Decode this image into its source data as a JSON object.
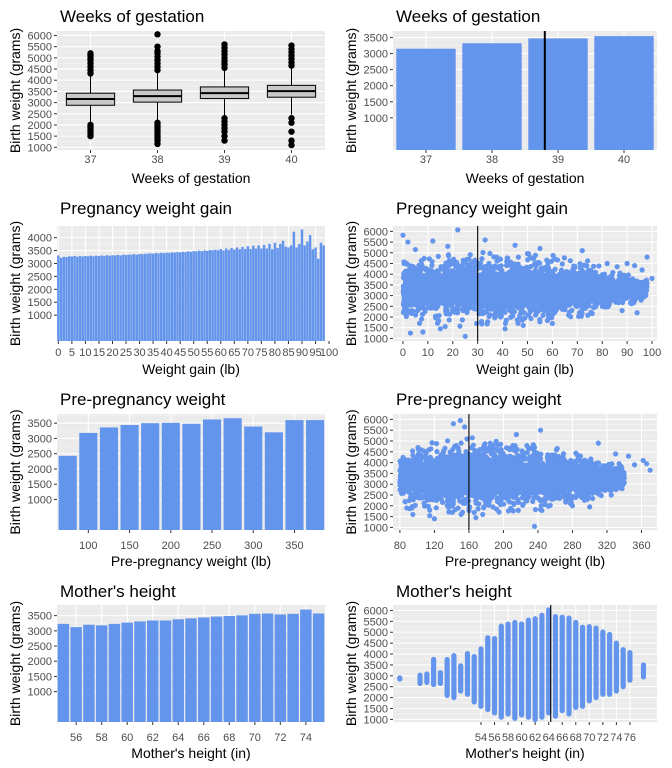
{
  "colors": {
    "panel_bg": "#ebebeb",
    "grid_major": "#ffffff",
    "bar": "#6495ed",
    "point": "#6495ed",
    "box_fill": "#c8c8c8",
    "outline": "#000000",
    "vline": "#000000"
  },
  "chart_data": [
    {
      "type": "box",
      "title": "Weeks of gestation",
      "xlabel": "Weeks of gestation",
      "ylabel": "Birth weight (grams)",
      "categories": [
        "37",
        "38",
        "39",
        "40"
      ],
      "ylim": [
        880,
        6200
      ],
      "yticks": [
        "1000",
        "1500",
        "2000",
        "2500",
        "3000",
        "3500",
        "4000",
        "4500",
        "5000",
        "5500",
        "6000"
      ],
      "boxes": [
        {
          "q1": 2880,
          "median": 3160,
          "q3": 3420,
          "wlo": 2100,
          "whi": 4180,
          "outliers": [
            1500,
            1600,
            1700,
            1800,
            1900,
            2000,
            4300,
            4450,
            4600,
            4750,
            4900,
            5000,
            5100,
            5200
          ]
        },
        {
          "q1": 3020,
          "median": 3290,
          "q3": 3560,
          "wlo": 2200,
          "whi": 4330,
          "outliers": [
            1150,
            1300,
            1400,
            1500,
            1600,
            1700,
            1800,
            1900,
            2000,
            2100,
            4450,
            4600,
            4750,
            4900,
            5050,
            5200,
            5300,
            5500,
            6050
          ]
        },
        {
          "q1": 3180,
          "median": 3420,
          "q3": 3700,
          "wlo": 2420,
          "whi": 4460,
          "outliers": [
            1300,
            1500,
            1700,
            1850,
            2000,
            2150,
            2300,
            4550,
            4700,
            4850,
            5000,
            5150,
            5300,
            5450,
            5600
          ]
        },
        {
          "q1": 3240,
          "median": 3510,
          "q3": 3770,
          "wlo": 2460,
          "whi": 4560,
          "outliers": [
            1100,
            1300,
            1700,
            2100,
            2300,
            4650,
            4800,
            4950,
            5100,
            5250,
            5400,
            5550
          ]
        }
      ]
    },
    {
      "type": "bar",
      "title": "Weeks of gestation",
      "xlabel": "Weeks of gestation",
      "ylabel": "Birth weight (grams)",
      "categories": [
        "37",
        "38",
        "39",
        "40"
      ],
      "values": [
        3150,
        3320,
        3470,
        3540
      ],
      "ylim": [
        0,
        3700
      ],
      "yticks": [
        "1000",
        "1500",
        "2000",
        "2500",
        "3000",
        "3500"
      ],
      "vline_x": 38.8
    },
    {
      "type": "bar",
      "title": "Pregnancy weight gain",
      "xlabel": "Weight gain (lb)",
      "ylabel": "Birth weight (grams)",
      "x": [
        0,
        1,
        2,
        3,
        4,
        5,
        6,
        7,
        8,
        9,
        10,
        11,
        12,
        13,
        14,
        15,
        16,
        17,
        18,
        19,
        20,
        21,
        22,
        23,
        24,
        25,
        26,
        27,
        28,
        29,
        30,
        31,
        32,
        33,
        34,
        35,
        36,
        37,
        38,
        39,
        40,
        41,
        42,
        43,
        44,
        45,
        46,
        47,
        48,
        49,
        50,
        51,
        52,
        53,
        54,
        55,
        56,
        57,
        58,
        59,
        60,
        61,
        62,
        63,
        64,
        65,
        66,
        67,
        68,
        69,
        70,
        71,
        72,
        73,
        74,
        75,
        76,
        77,
        78,
        79,
        80,
        81,
        82,
        83,
        84,
        85,
        86,
        87,
        88,
        89,
        90,
        91,
        92,
        93,
        94,
        95,
        96,
        97,
        98
      ],
      "values": [
        3310,
        3220,
        3260,
        3250,
        3280,
        3270,
        3290,
        3260,
        3290,
        3270,
        3290,
        3280,
        3300,
        3280,
        3300,
        3290,
        3310,
        3290,
        3320,
        3300,
        3320,
        3310,
        3330,
        3310,
        3340,
        3330,
        3340,
        3340,
        3360,
        3340,
        3370,
        3360,
        3370,
        3380,
        3390,
        3380,
        3400,
        3390,
        3410,
        3400,
        3420,
        3410,
        3430,
        3420,
        3440,
        3430,
        3450,
        3440,
        3470,
        3450,
        3480,
        3470,
        3500,
        3480,
        3510,
        3490,
        3520,
        3510,
        3530,
        3510,
        3560,
        3500,
        3580,
        3520,
        3600,
        3540,
        3620,
        3550,
        3640,
        3560,
        3670,
        3560,
        3690,
        3580,
        3700,
        3580,
        3720,
        3580,
        3760,
        3550,
        3800,
        3600,
        3760,
        3880,
        3650,
        3620,
        3700,
        4230,
        3620,
        3750,
        4320,
        3700,
        3850,
        4100,
        3550,
        3620,
        3180,
        3800,
        3700
      ],
      "ylim": [
        0,
        4450
      ],
      "yticks": [
        "1000",
        "1500",
        "2000",
        "2500",
        "3000",
        "3500",
        "4000"
      ],
      "xticks": [
        "0",
        "5",
        "10",
        "15",
        "20",
        "25",
        "30",
        "35",
        "40",
        "45",
        "50",
        "55",
        "60",
        "65",
        "70",
        "75",
        "80",
        "85",
        "90",
        "95",
        "100"
      ],
      "xtick_values": [
        0,
        5,
        10,
        15,
        20,
        25,
        30,
        35,
        40,
        45,
        50,
        55,
        60,
        65,
        70,
        75,
        80,
        85,
        90,
        95,
        100
      ],
      "xlim": [
        -0.5,
        98.5
      ]
    },
    {
      "type": "scatter",
      "title": "Pregnancy weight gain",
      "xlabel": "Weight gain (lb)",
      "ylabel": "Birth weight (grams)",
      "xlim": [
        -4,
        102
      ],
      "ylim": [
        880,
        6250
      ],
      "center_y": 3300,
      "spread": [
        [
          0,
          3200
        ],
        [
          50,
          3600
        ],
        [
          80,
          2800
        ],
        [
          95,
          1200
        ]
      ],
      "mass_extent": [
        [
          0,
          1700,
          4850
        ],
        [
          10,
          1500,
          5000
        ],
        [
          30,
          1500,
          5050
        ],
        [
          50,
          1600,
          5100
        ],
        [
          65,
          1700,
          4900
        ],
        [
          75,
          2100,
          4700
        ],
        [
          85,
          2500,
          4100
        ],
        [
          98,
          2700,
          3800
        ]
      ],
      "outliers": [
        [
          0,
          5820
        ],
        [
          2,
          5500
        ],
        [
          5,
          5150
        ],
        [
          12,
          5550
        ],
        [
          18,
          5300
        ],
        [
          25,
          1100
        ],
        [
          22,
          6070
        ],
        [
          33,
          5600
        ],
        [
          41,
          1450
        ],
        [
          45,
          5350
        ],
        [
          55,
          5200
        ],
        [
          60,
          1700
        ],
        [
          72,
          5100
        ],
        [
          82,
          4500
        ],
        [
          86,
          4350
        ],
        [
          88,
          2300
        ],
        [
          90,
          4500
        ],
        [
          93,
          4400
        ],
        [
          94,
          2200
        ],
        [
          96,
          4200
        ],
        [
          98,
          4800
        ],
        [
          100,
          3800
        ],
        [
          8,
          1300
        ],
        [
          15,
          1450
        ],
        [
          3,
          1250
        ]
      ],
      "yticks": [
        "1000",
        "1500",
        "2000",
        "2500",
        "3000",
        "3500",
        "4000",
        "4500",
        "5000",
        "5500",
        "6000"
      ],
      "xticks": [
        "0",
        "10",
        "20",
        "30",
        "40",
        "50",
        "60",
        "70",
        "80",
        "90",
        "100"
      ],
      "xtick_values": [
        0,
        10,
        20,
        30,
        40,
        50,
        60,
        70,
        80,
        90,
        100
      ],
      "vline_x": 30
    },
    {
      "type": "bar",
      "title": "Pre-pregnancy weight",
      "xlabel": "Pre-pregnancy weight (lb)",
      "ylabel": "Birth weight (grams)",
      "x": [
        75,
        100,
        125,
        150,
        175,
        200,
        225,
        250,
        275,
        300,
        325,
        350,
        375
      ],
      "values": [
        2430,
        3180,
        3360,
        3440,
        3500,
        3510,
        3480,
        3620,
        3660,
        3390,
        3200,
        3600,
        3600
      ],
      "bin_width": 22,
      "xlim": [
        62,
        387
      ],
      "ylim": [
        0,
        3800
      ],
      "yticks": [
        "1000",
        "1500",
        "2000",
        "2500",
        "3000",
        "3500"
      ],
      "xticks": [
        "100",
        "150",
        "200",
        "250",
        "300",
        "350"
      ],
      "xtick_values": [
        100,
        150,
        200,
        250,
        300,
        350
      ]
    },
    {
      "type": "scatter",
      "title": "Pre-pregnancy weight",
      "xlabel": "Pre-pregnancy weight (lb)",
      "ylabel": "Birth weight (grams)",
      "xlim": [
        72,
        378
      ],
      "ylim": [
        880,
        6250
      ],
      "center_y": 3300,
      "mass_extent": [
        [
          80,
          1800,
          4200
        ],
        [
          100,
          1500,
          4800
        ],
        [
          130,
          1400,
          5100
        ],
        [
          165,
          1400,
          5200
        ],
        [
          200,
          1500,
          5000
        ],
        [
          240,
          1700,
          4900
        ],
        [
          270,
          2000,
          4600
        ],
        [
          300,
          2200,
          4400
        ],
        [
          320,
          2600,
          4200
        ],
        [
          340,
          2800,
          3900
        ]
      ],
      "outliers": [
        [
          150,
          5950
        ],
        [
          142,
          5800
        ],
        [
          155,
          5650
        ],
        [
          168,
          1450
        ],
        [
          176,
          1600
        ],
        [
          192,
          1850
        ],
        [
          236,
          1050
        ],
        [
          243,
          5500
        ],
        [
          215,
          5300
        ],
        [
          310,
          4900
        ],
        [
          330,
          4400
        ],
        [
          345,
          4300
        ],
        [
          352,
          3900
        ],
        [
          362,
          4100
        ],
        [
          370,
          3650
        ],
        [
          366,
          3950
        ],
        [
          88,
          1900
        ],
        [
          95,
          1600
        ],
        [
          120,
          1400
        ],
        [
          300,
          1950
        ],
        [
          280,
          2000
        ],
        [
          325,
          2500
        ]
      ],
      "yticks": [
        "1000",
        "1500",
        "2000",
        "2500",
        "3000",
        "3500",
        "4000",
        "4500",
        "5000",
        "5500",
        "6000"
      ],
      "xticks": [
        "80",
        "120",
        "160",
        "200",
        "240",
        "280",
        "320",
        "360"
      ],
      "xtick_values": [
        80,
        120,
        160,
        200,
        240,
        280,
        320,
        360
      ],
      "vline_x": 160
    },
    {
      "type": "bar",
      "title": "Mother's height",
      "xlabel": "Mother's height (in)",
      "ylabel": "Birth weight (grams)",
      "x": [
        55,
        56,
        57,
        58,
        59,
        60,
        61,
        62,
        63,
        64,
        65,
        66,
        67,
        68,
        69,
        70,
        71,
        72,
        73,
        74,
        75
      ],
      "values": [
        3230,
        3120,
        3200,
        3180,
        3230,
        3270,
        3310,
        3340,
        3340,
        3380,
        3410,
        3440,
        3470,
        3490,
        3510,
        3560,
        3570,
        3540,
        3560,
        3700,
        3570
      ],
      "xlim": [
        54.5,
        75.5
      ],
      "ylim": [
        0,
        3850
      ],
      "yticks": [
        "1000",
        "1500",
        "2000",
        "2500",
        "3000",
        "3500"
      ],
      "xticks": [
        "56",
        "58",
        "60",
        "62",
        "64",
        "66",
        "68",
        "70",
        "72",
        "74"
      ],
      "xtick_values": [
        56,
        58,
        60,
        62,
        64,
        66,
        68,
        70,
        72,
        74
      ]
    },
    {
      "type": "scatter",
      "title": "Mother's height",
      "xlabel": "Mother's height (in)",
      "ylabel": "Birth weight (grams)",
      "xlim": [
        41,
        80
      ],
      "ylim": [
        880,
        6250
      ],
      "columns": [
        [
          42,
          2850,
          2950
        ],
        [
          45,
          2650,
          3050
        ],
        [
          46,
          2700,
          3100
        ],
        [
          47,
          2600,
          3800
        ],
        [
          48,
          2650,
          3150
        ],
        [
          49,
          2100,
          3800
        ],
        [
          50,
          2000,
          3950
        ],
        [
          51,
          2300,
          3500
        ],
        [
          52,
          2150,
          4050
        ],
        [
          53,
          1800,
          3900
        ],
        [
          54,
          1600,
          4250
        ],
        [
          55,
          1450,
          4800
        ],
        [
          56,
          1300,
          4750
        ],
        [
          57,
          1100,
          5300
        ],
        [
          58,
          1250,
          5400
        ],
        [
          59,
          1050,
          5450
        ],
        [
          60,
          1200,
          5400
        ],
        [
          61,
          1100,
          5600
        ],
        [
          62,
          1000,
          5650
        ],
        [
          63,
          1100,
          5800
        ],
        [
          64,
          1300,
          6050
        ],
        [
          65,
          1150,
          5750
        ],
        [
          66,
          1400,
          5700
        ],
        [
          67,
          1250,
          5700
        ],
        [
          68,
          1550,
          5500
        ],
        [
          69,
          1600,
          5250
        ],
        [
          70,
          1850,
          5300
        ],
        [
          71,
          2000,
          5200
        ],
        [
          72,
          2150,
          5050
        ],
        [
          73,
          2150,
          4950
        ],
        [
          74,
          2300,
          4500
        ],
        [
          75,
          2500,
          4250
        ],
        [
          76,
          2800,
          4100
        ],
        [
          78,
          2950,
          3550
        ]
      ],
      "yticks": [
        "1000",
        "1500",
        "2000",
        "2500",
        "3000",
        "3500",
        "4000",
        "4500",
        "5000",
        "5500",
        "6000"
      ],
      "xticks": [
        "54",
        "56",
        "58",
        "60",
        "62",
        "64",
        "66",
        "68",
        "70",
        "72",
        "74",
        "76"
      ],
      "xtick_values": [
        54,
        56,
        58,
        60,
        62,
        64,
        66,
        68,
        70,
        72,
        74,
        76
      ],
      "vline_x": 64.3
    }
  ]
}
